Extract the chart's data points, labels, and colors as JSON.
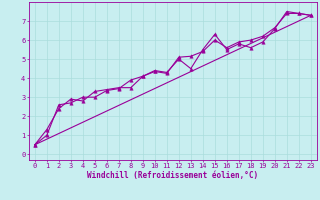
{
  "xlabel": "Windchill (Refroidissement éolien,°C)",
  "bg_color": "#c8eef0",
  "line_color": "#990099",
  "grid_color": "#aadddd",
  "line1_x": [
    0,
    1,
    2,
    3,
    4,
    5,
    6,
    7,
    8,
    9,
    10,
    11,
    12,
    13,
    14,
    15,
    16,
    17,
    18,
    19,
    20,
    21,
    22,
    23
  ],
  "line1_y": [
    0.5,
    1.3,
    2.4,
    2.9,
    2.8,
    3.3,
    3.4,
    3.5,
    3.5,
    4.1,
    4.4,
    4.3,
    5.0,
    4.5,
    5.5,
    6.3,
    5.5,
    5.8,
    5.6,
    5.9,
    6.6,
    7.5,
    7.4,
    7.3
  ],
  "line2_x": [
    0,
    1,
    2,
    3,
    4,
    5,
    6,
    7,
    8,
    9,
    10,
    11,
    12,
    13,
    14,
    15,
    16,
    17,
    18,
    19,
    20,
    21,
    22,
    23
  ],
  "line2_y": [
    0.5,
    1.0,
    2.6,
    2.7,
    3.0,
    3.0,
    3.35,
    3.45,
    3.9,
    4.1,
    4.35,
    4.25,
    5.1,
    5.15,
    5.4,
    6.0,
    5.6,
    5.9,
    6.0,
    6.2,
    6.65,
    7.4,
    7.4,
    7.3
  ],
  "line3_x": [
    0,
    23
  ],
  "line3_y": [
    0.5,
    7.3
  ],
  "xlim": [
    -0.5,
    23.5
  ],
  "ylim": [
    -0.3,
    8.0
  ],
  "xticks": [
    0,
    1,
    2,
    3,
    4,
    5,
    6,
    7,
    8,
    9,
    10,
    11,
    12,
    13,
    14,
    15,
    16,
    17,
    18,
    19,
    20,
    21,
    22,
    23
  ],
  "yticks": [
    0,
    1,
    2,
    3,
    4,
    5,
    6,
    7
  ],
  "marker": "^",
  "markersize": 2.5,
  "linewidth": 0.8,
  "tick_fontsize": 5.0,
  "xlabel_fontsize": 5.5
}
